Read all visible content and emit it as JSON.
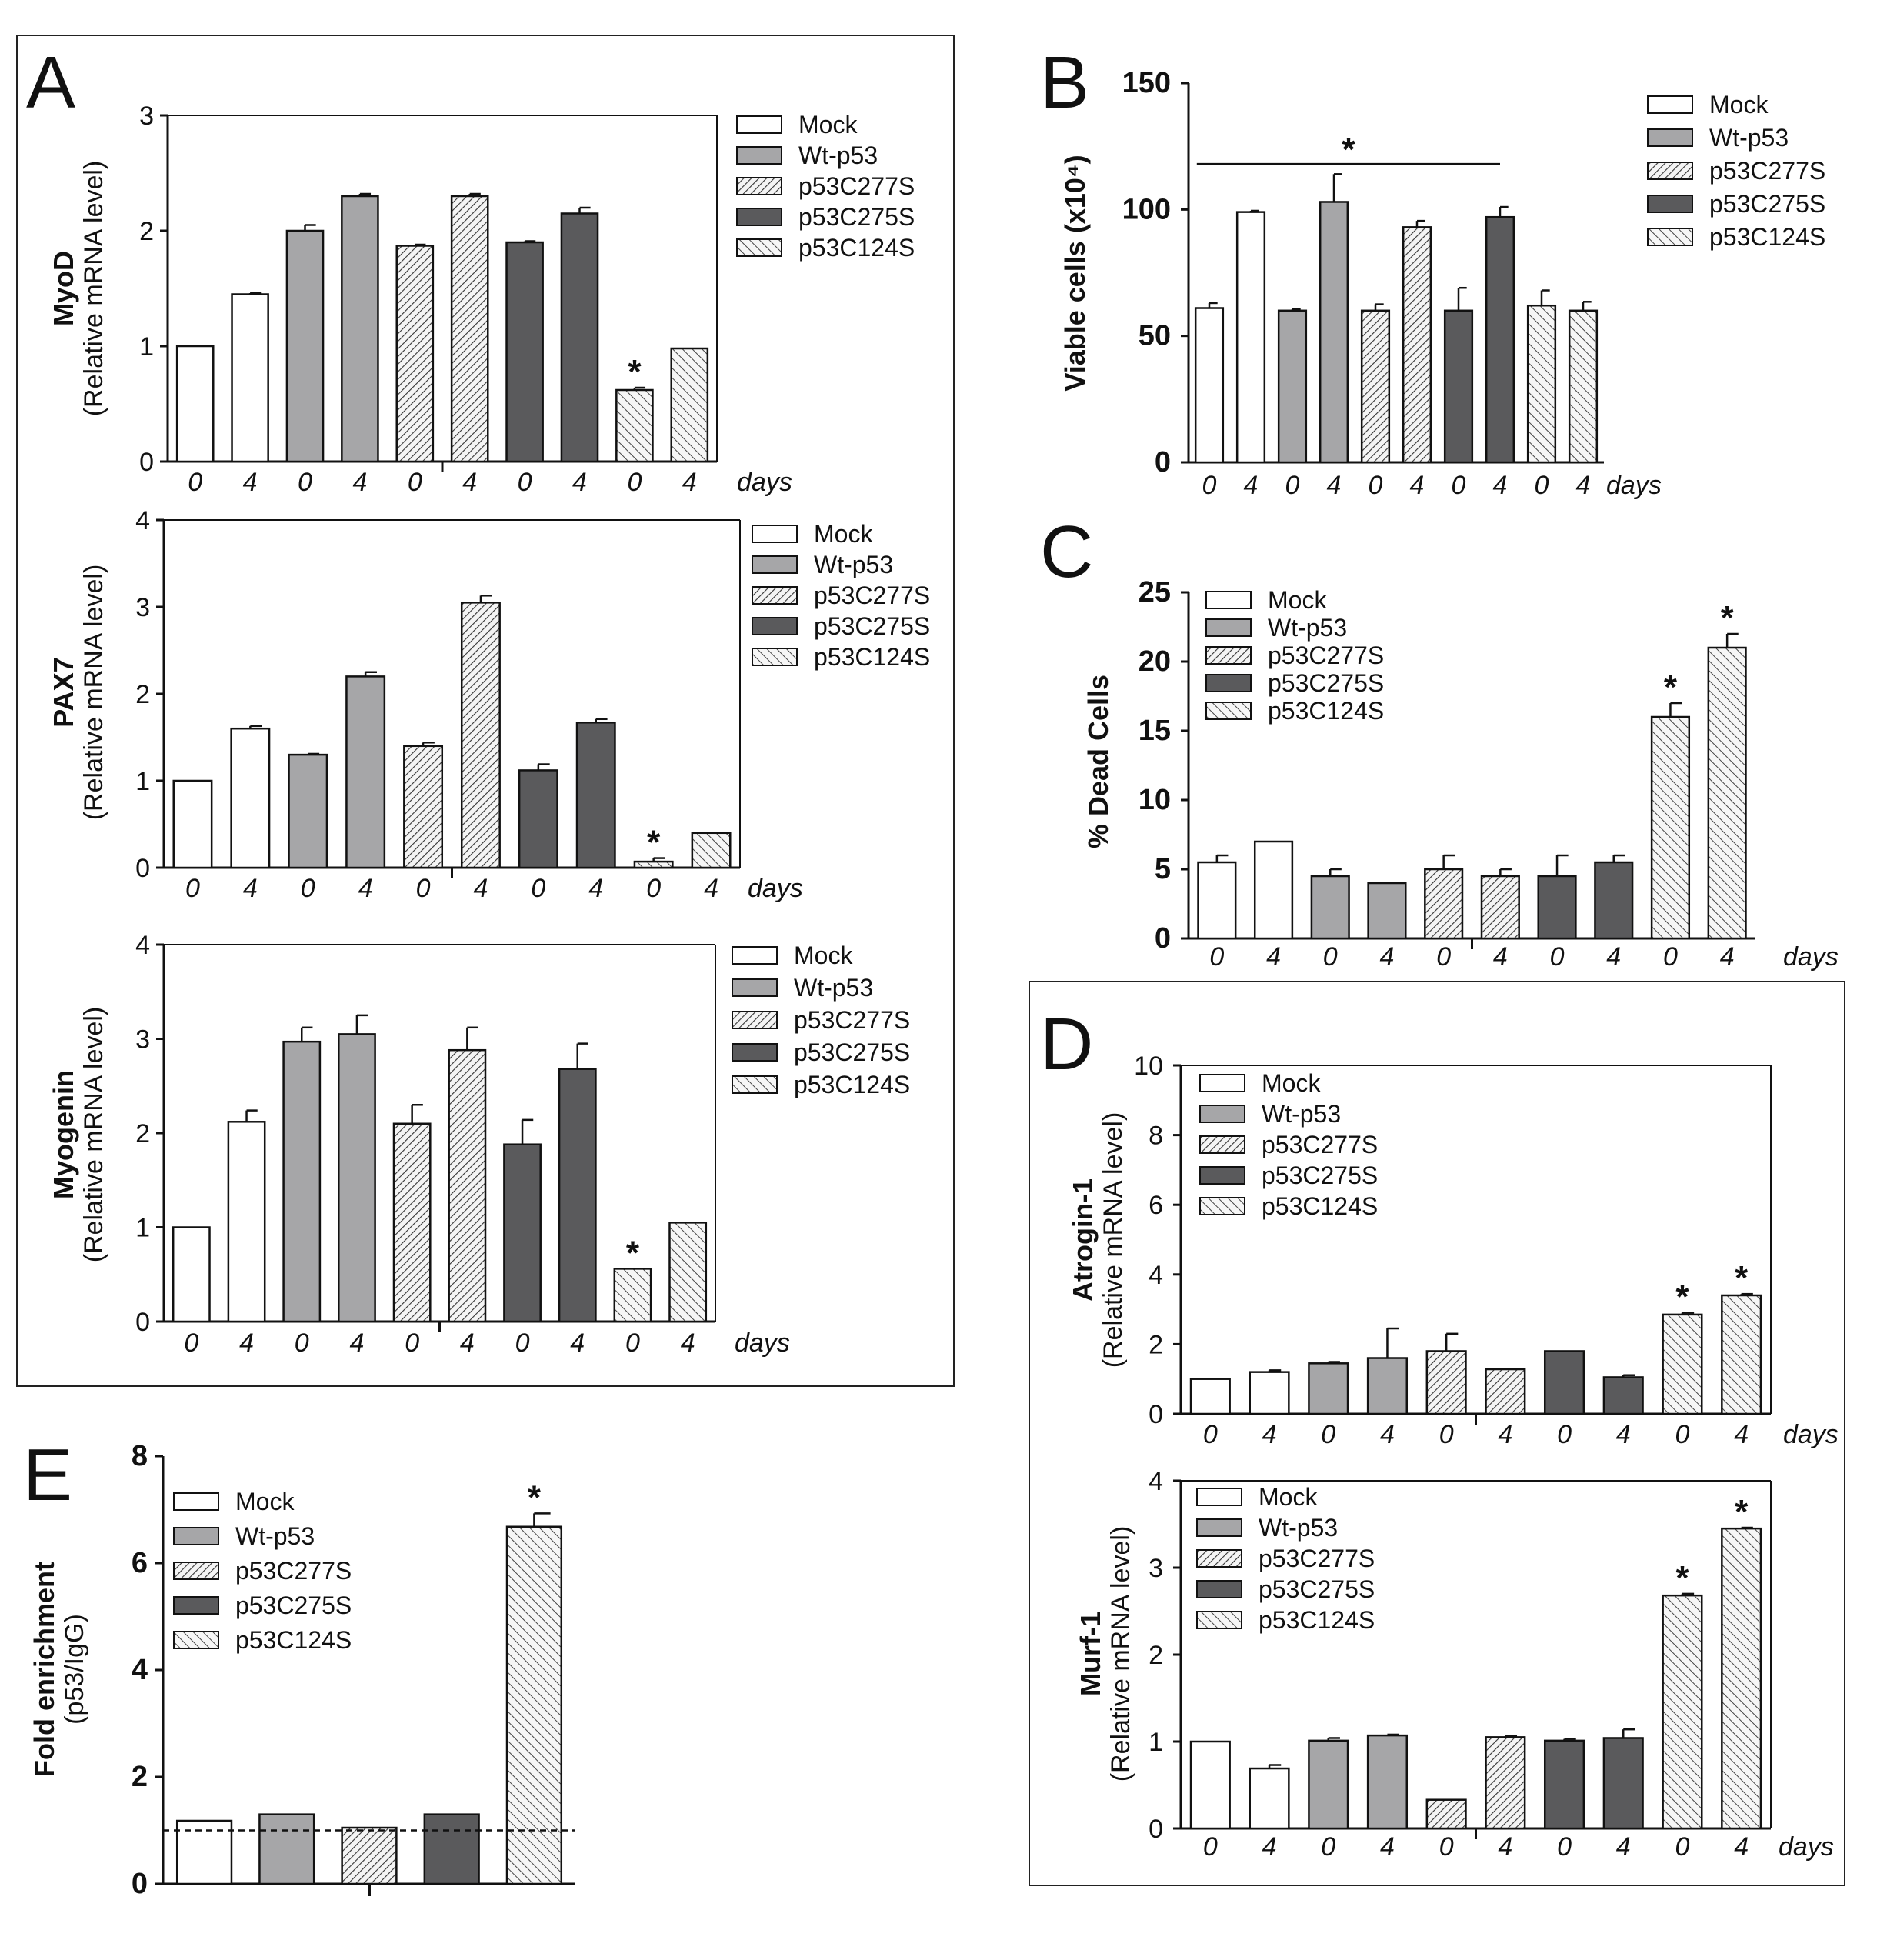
{
  "legend": [
    "Mock",
    "Wt-p53",
    "p53C277S",
    "p53C275S",
    "p53C124S"
  ],
  "day_unit": "days",
  "chart_data": [
    {
      "panel": "A",
      "type": "bar",
      "ytitle": "MyoD",
      "ysub": "(Relative mRNA level)",
      "ylim": [
        0,
        3
      ],
      "yticks": [
        0,
        1,
        2,
        3
      ],
      "grid": false,
      "legend_position": "right",
      "categories": [
        "0",
        "4",
        "0",
        "4",
        "0",
        "4",
        "0",
        "4",
        "0",
        "4"
      ],
      "groups": [
        "Mock",
        "Mock",
        "Wt-p53",
        "Wt-p53",
        "p53C277S",
        "p53C277S",
        "p53C275S",
        "p53C275S",
        "p53C124S",
        "p53C124S"
      ],
      "values": [
        1.0,
        1.45,
        2.0,
        2.3,
        1.87,
        2.3,
        1.9,
        2.15,
        0.62,
        0.98
      ],
      "errors": [
        0,
        0.01,
        0.05,
        0.02,
        0.01,
        0.02,
        0.01,
        0.05,
        0.02,
        0
      ],
      "stars": [
        8
      ]
    },
    {
      "panel": "",
      "type": "bar",
      "ytitle": "PAX7",
      "ysub": "(Relative mRNA level)",
      "ylim": [
        0,
        4
      ],
      "yticks": [
        0,
        1,
        2,
        3,
        4
      ],
      "grid": false,
      "legend_position": "right",
      "categories": [
        "0",
        "4",
        "0",
        "4",
        "0",
        "4",
        "0",
        "4",
        "0",
        "4"
      ],
      "groups": [
        "Mock",
        "Mock",
        "Wt-p53",
        "Wt-p53",
        "p53C277S",
        "p53C277S",
        "p53C275S",
        "p53C275S",
        "p53C124S",
        "p53C124S"
      ],
      "values": [
        1.0,
        1.6,
        1.3,
        2.2,
        1.4,
        3.05,
        1.12,
        1.67,
        0.07,
        0.4
      ],
      "errors": [
        0,
        0.03,
        0.01,
        0.05,
        0.04,
        0.08,
        0.07,
        0.04,
        0.04,
        0
      ],
      "stars": [
        8
      ]
    },
    {
      "panel": "",
      "type": "bar",
      "ytitle": "Myogenin",
      "ysub": "(Relative mRNA level)",
      "ylim": [
        0,
        4
      ],
      "yticks": [
        0,
        1,
        2,
        3,
        4
      ],
      "grid": false,
      "legend_position": "right",
      "categories": [
        "0",
        "4",
        "0",
        "4",
        "0",
        "4",
        "0",
        "4",
        "0",
        "4"
      ],
      "groups": [
        "Mock",
        "Mock",
        "Wt-p53",
        "Wt-p53",
        "p53C277S",
        "p53C277S",
        "p53C275S",
        "p53C275S",
        "p53C124S",
        "p53C124S"
      ],
      "values": [
        1.0,
        2.12,
        2.97,
        3.05,
        2.1,
        2.88,
        1.88,
        2.68,
        0.56,
        1.05
      ],
      "errors": [
        0,
        0.12,
        0.15,
        0.2,
        0.2,
        0.24,
        0.26,
        0.27,
        0,
        0
      ],
      "stars": [
        8
      ]
    },
    {
      "panel": "B",
      "type": "bar",
      "ytitle": "Viable cells (x10⁴)",
      "ysub": "",
      "ylim": [
        0,
        150
      ],
      "yticks": [
        0,
        50,
        100,
        150
      ],
      "grid": false,
      "legend_position": "top-right",
      "categories": [
        "0",
        "4",
        "0",
        "4",
        "0",
        "4",
        "0",
        "4",
        "0",
        "4"
      ],
      "groups": [
        "Mock",
        "Mock",
        "Wt-p53",
        "Wt-p53",
        "p53C277S",
        "p53C277S",
        "p53C275S",
        "p53C275S",
        "p53C124S",
        "p53C124S"
      ],
      "values": [
        61,
        99,
        60,
        103,
        60,
        93,
        60,
        97,
        62,
        60
      ],
      "errors": [
        2,
        0.5,
        0.5,
        11,
        2.5,
        2.5,
        9,
        4,
        6,
        3.5
      ],
      "stars": [],
      "bracket": {
        "from": 0,
        "to": 7,
        "y": 118,
        "label": "*"
      }
    },
    {
      "panel": "C",
      "type": "bar",
      "ytitle": "% Dead Cells",
      "ysub": "",
      "ylim": [
        0,
        25
      ],
      "yticks": [
        0,
        5,
        10,
        15,
        20,
        25
      ],
      "grid": false,
      "legend_position": "top-left",
      "categories": [
        "0",
        "4",
        "0",
        "4",
        "0",
        "4",
        "0",
        "4",
        "0",
        "4"
      ],
      "groups": [
        "Mock",
        "Mock",
        "Wt-p53",
        "Wt-p53",
        "p53C277S",
        "p53C277S",
        "p53C275S",
        "p53C275S",
        "p53C124S",
        "p53C124S"
      ],
      "values": [
        5.5,
        7.0,
        4.5,
        4.0,
        5.0,
        4.5,
        4.5,
        5.5,
        16.0,
        21.0
      ],
      "errors": [
        0.5,
        0,
        0.5,
        0,
        1.0,
        0.5,
        1.5,
        0.5,
        1.0,
        1.0
      ],
      "stars": [
        8,
        9
      ]
    },
    {
      "panel": "D",
      "type": "bar",
      "ytitle": "Atrogin-1",
      "ysub": "(Relative mRNA level)",
      "ylim": [
        0,
        10
      ],
      "yticks": [
        0,
        2,
        4,
        6,
        8,
        10
      ],
      "grid": false,
      "legend_position": "top-left",
      "categories": [
        "0",
        "4",
        "0",
        "4",
        "0",
        "4",
        "0",
        "4",
        "0",
        "4"
      ],
      "groups": [
        "Mock",
        "Mock",
        "Wt-p53",
        "Wt-p53",
        "p53C277S",
        "p53C277S",
        "p53C275S",
        "p53C275S",
        "p53C124S",
        "p53C124S"
      ],
      "values": [
        1.0,
        1.2,
        1.45,
        1.6,
        1.8,
        1.28,
        1.8,
        1.05,
        2.85,
        3.4
      ],
      "errors": [
        0,
        0.05,
        0.04,
        0.85,
        0.5,
        0,
        0,
        0.06,
        0.05,
        0.04
      ],
      "stars": [
        8,
        9
      ]
    },
    {
      "panel": "",
      "type": "bar",
      "ytitle": "Murf-1",
      "ysub": "(Relative mRNA level)",
      "ylim": [
        0,
        4
      ],
      "yticks": [
        0,
        1,
        2,
        3,
        4
      ],
      "grid": false,
      "legend_position": "top-left",
      "categories": [
        "0",
        "4",
        "0",
        "4",
        "0",
        "4",
        "0",
        "4",
        "0",
        "4"
      ],
      "groups": [
        "Mock",
        "Mock",
        "Wt-p53",
        "Wt-p53",
        "p53C277S",
        "p53C277S",
        "p53C275S",
        "p53C275S",
        "p53C124S",
        "p53C124S"
      ],
      "values": [
        1.0,
        0.69,
        1.01,
        1.07,
        0.33,
        1.05,
        1.01,
        1.04,
        2.68,
        3.45
      ],
      "errors": [
        0,
        0.04,
        0.03,
        0.01,
        0,
        0.01,
        0.02,
        0.1,
        0.02,
        0.01
      ],
      "stars": [
        8,
        9
      ]
    },
    {
      "panel": "E",
      "type": "bar",
      "ytitle": "Fold enrichment",
      "ysub": "(p53/IgG)",
      "ylim": [
        0,
        8
      ],
      "yticks": [
        0,
        2,
        4,
        6,
        8
      ],
      "grid": false,
      "legend_position": "top-left",
      "categories": [
        "",
        "",
        "",
        "",
        ""
      ],
      "groups": [
        "Mock",
        "Wt-p53",
        "p53C277S",
        "p53C275S",
        "p53C124S"
      ],
      "values": [
        1.18,
        1.3,
        1.05,
        1.3,
        6.68
      ],
      "errors": [
        0,
        0,
        0,
        0,
        0.25
      ],
      "stars": [
        4
      ],
      "reference_line": 1.0
    }
  ]
}
